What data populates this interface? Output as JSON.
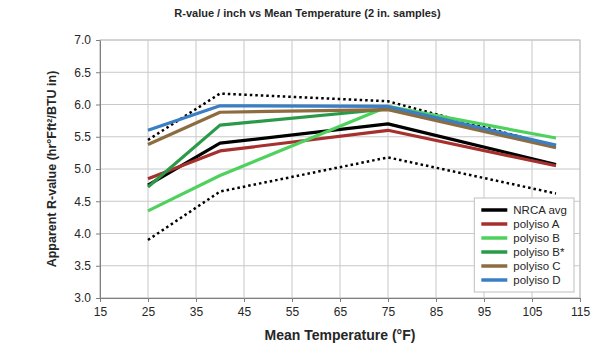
{
  "chart_data": {
    "type": "line",
    "title": "R-value / inch vs Mean Temperature (2 in. samples)",
    "x_label": "Mean Temperature (°F)",
    "y_label": "Apparent R-value (hr°Fft²/BTU in)",
    "x": [
      25,
      40,
      75,
      110
    ],
    "series": [
      {
        "color": "#000000",
        "line_style": "dotted",
        "values": [
          5.45,
          6.17,
          6.05,
          5.35
        ]
      },
      {
        "color": "#000000",
        "line_style": "dotted",
        "values": [
          3.9,
          4.65,
          5.18,
          4.62
        ]
      },
      {
        "name": "NRCA avg",
        "color": "#000000",
        "line_style": "solid",
        "values": [
          4.75,
          5.4,
          5.7,
          5.07
        ]
      },
      {
        "name": "polyiso A",
        "color": "#a5302e",
        "line_style": "solid",
        "values": [
          4.85,
          5.28,
          5.6,
          5.05
        ]
      },
      {
        "name": "polyiso B",
        "color": "#4fd15e",
        "line_style": "solid",
        "values": [
          4.35,
          4.9,
          5.97,
          5.48
        ]
      },
      {
        "name": "polyiso B*",
        "color": "#2b9a48",
        "line_style": "solid",
        "values": [
          4.72,
          5.68,
          5.93,
          5.36
        ]
      },
      {
        "name": "polyiso C",
        "color": "#8c6c40",
        "line_style": "solid",
        "values": [
          5.38,
          5.88,
          5.92,
          5.33
        ]
      },
      {
        "name": "polyiso D",
        "color": "#3a7fc4",
        "line_style": "solid",
        "values": [
          5.6,
          5.98,
          5.97,
          5.37
        ]
      }
    ],
    "xlim": [
      15,
      115
    ],
    "xticks": [
      15,
      25,
      35,
      45,
      55,
      65,
      75,
      85,
      95,
      105,
      115
    ],
    "ylim": [
      3,
      7
    ],
    "yticks": [
      {
        "value": 3,
        "label": "3.0"
      },
      {
        "value": 3.5,
        "label": "3.5"
      },
      {
        "value": 4,
        "label": "4.0"
      },
      {
        "value": 4.5,
        "label": "4.5"
      },
      {
        "value": 5,
        "label": "5.0"
      },
      {
        "value": 5.5,
        "label": "5.5"
      },
      {
        "value": 6,
        "label": "6.0"
      },
      {
        "value": 6.5,
        "label": "6.5"
      },
      {
        "value": 7,
        "label": "7.0"
      }
    ],
    "grid": true,
    "legend": "lower right"
  }
}
